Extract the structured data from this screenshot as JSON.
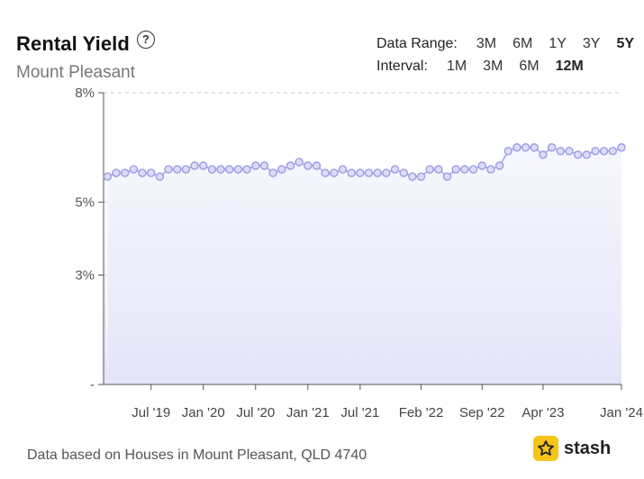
{
  "header": {
    "title": "Rental Yield",
    "subtitle": "Mount Pleasant",
    "help_icon": "question-circle-icon"
  },
  "controls": {
    "data_range_label": "Data Range:",
    "data_range_options": [
      "3M",
      "6M",
      "1Y",
      "3Y",
      "5Y"
    ],
    "data_range_selected": "5Y",
    "interval_label": "Interval:",
    "interval_options": [
      "1M",
      "3M",
      "6M",
      "12M"
    ],
    "interval_selected": "12M"
  },
  "footer": {
    "note": "Data based on Houses in Mount Pleasant, QLD 4740",
    "brand": "stash",
    "brand_icon": "star-icon"
  },
  "colors": {
    "line": "#a9a9ec",
    "marker_stroke": "#9b9be6",
    "marker_fill": "#dcdcf8",
    "area_top": "#f7f7fe",
    "area_bottom": "#e4e4f8",
    "grid": "#c8c8c8",
    "brand": "#f5c518"
  },
  "chart_data": {
    "type": "area",
    "title": "Rental Yield",
    "ylim": [
      0,
      8
    ],
    "yticks": [
      {
        "value": 0,
        "label": "-"
      },
      {
        "value": 3,
        "label": "3%"
      },
      {
        "value": 5,
        "label": "5%"
      },
      {
        "value": 8,
        "label": "8%"
      }
    ],
    "xticks": [
      {
        "index": 5,
        "label": "Jul '19"
      },
      {
        "index": 11,
        "label": "Jan '20"
      },
      {
        "index": 17,
        "label": "Jul '20"
      },
      {
        "index": 23,
        "label": "Jan '21"
      },
      {
        "index": 29,
        "label": "Jul '21"
      },
      {
        "index": 36,
        "label": "Feb '22"
      },
      {
        "index": 43,
        "label": "Sep '22"
      },
      {
        "index": 50,
        "label": "Apr '23"
      },
      {
        "index": 59,
        "label": "Jan '24"
      }
    ],
    "grid": true,
    "series": [
      {
        "values": [
          5.7,
          5.8,
          5.8,
          5.9,
          5.8,
          5.8,
          5.7,
          5.9,
          5.9,
          5.9,
          6.0,
          6.0,
          5.9,
          5.9,
          5.9,
          5.9,
          5.9,
          6.0,
          6.0,
          5.8,
          5.9,
          6.0,
          6.1,
          6.0,
          6.0,
          5.8,
          5.8,
          5.9,
          5.8,
          5.8,
          5.8,
          5.8,
          5.8,
          5.9,
          5.8,
          5.7,
          5.7,
          5.9,
          5.9,
          5.7,
          5.9,
          5.9,
          5.9,
          6.0,
          5.9,
          6.0,
          6.4,
          6.5,
          6.5,
          6.5,
          6.3,
          6.5,
          6.4,
          6.4,
          6.3,
          6.3,
          6.4,
          6.4,
          6.4,
          6.5
        ]
      }
    ]
  }
}
